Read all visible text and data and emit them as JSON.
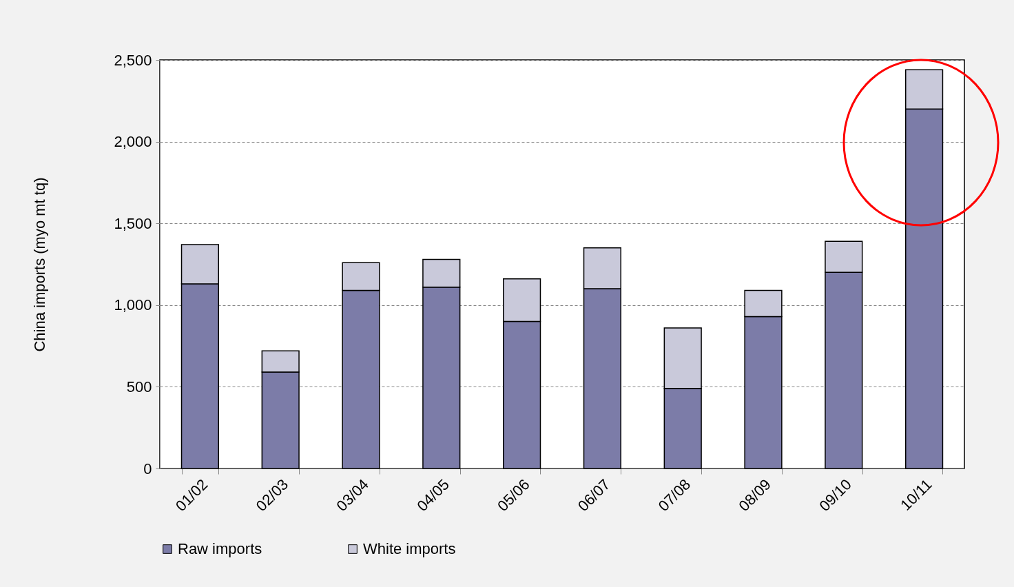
{
  "chart_data": {
    "type": "bar",
    "stacked": true,
    "ylabel": "China imports (myo mt tq)",
    "categories": [
      "01/02",
      "02/03",
      "03/04",
      "04/05",
      "05/06",
      "06/07",
      "07/08",
      "08/09",
      "09/10",
      "10/11"
    ],
    "series": [
      {
        "name": "Raw imports",
        "color": "#7c7ca8",
        "values": [
          1130,
          590,
          1090,
          1110,
          900,
          1100,
          490,
          930,
          1200,
          2200
        ]
      },
      {
        "name": "White imports",
        "color": "#c9c9da",
        "values": [
          240,
          130,
          170,
          170,
          260,
          250,
          370,
          160,
          190,
          240
        ]
      }
    ],
    "ylim": [
      0,
      2500
    ],
    "yticks": [
      {
        "value": 0,
        "label": "0"
      },
      {
        "value": 500,
        "label": "500"
      },
      {
        "value": 1000,
        "label": "1,000"
      },
      {
        "value": 1500,
        "label": "1,500"
      },
      {
        "value": 2000,
        "label": "2,000"
      },
      {
        "value": 2500,
        "label": "2,500"
      }
    ],
    "grid": "y",
    "legend": "bottom"
  }
}
